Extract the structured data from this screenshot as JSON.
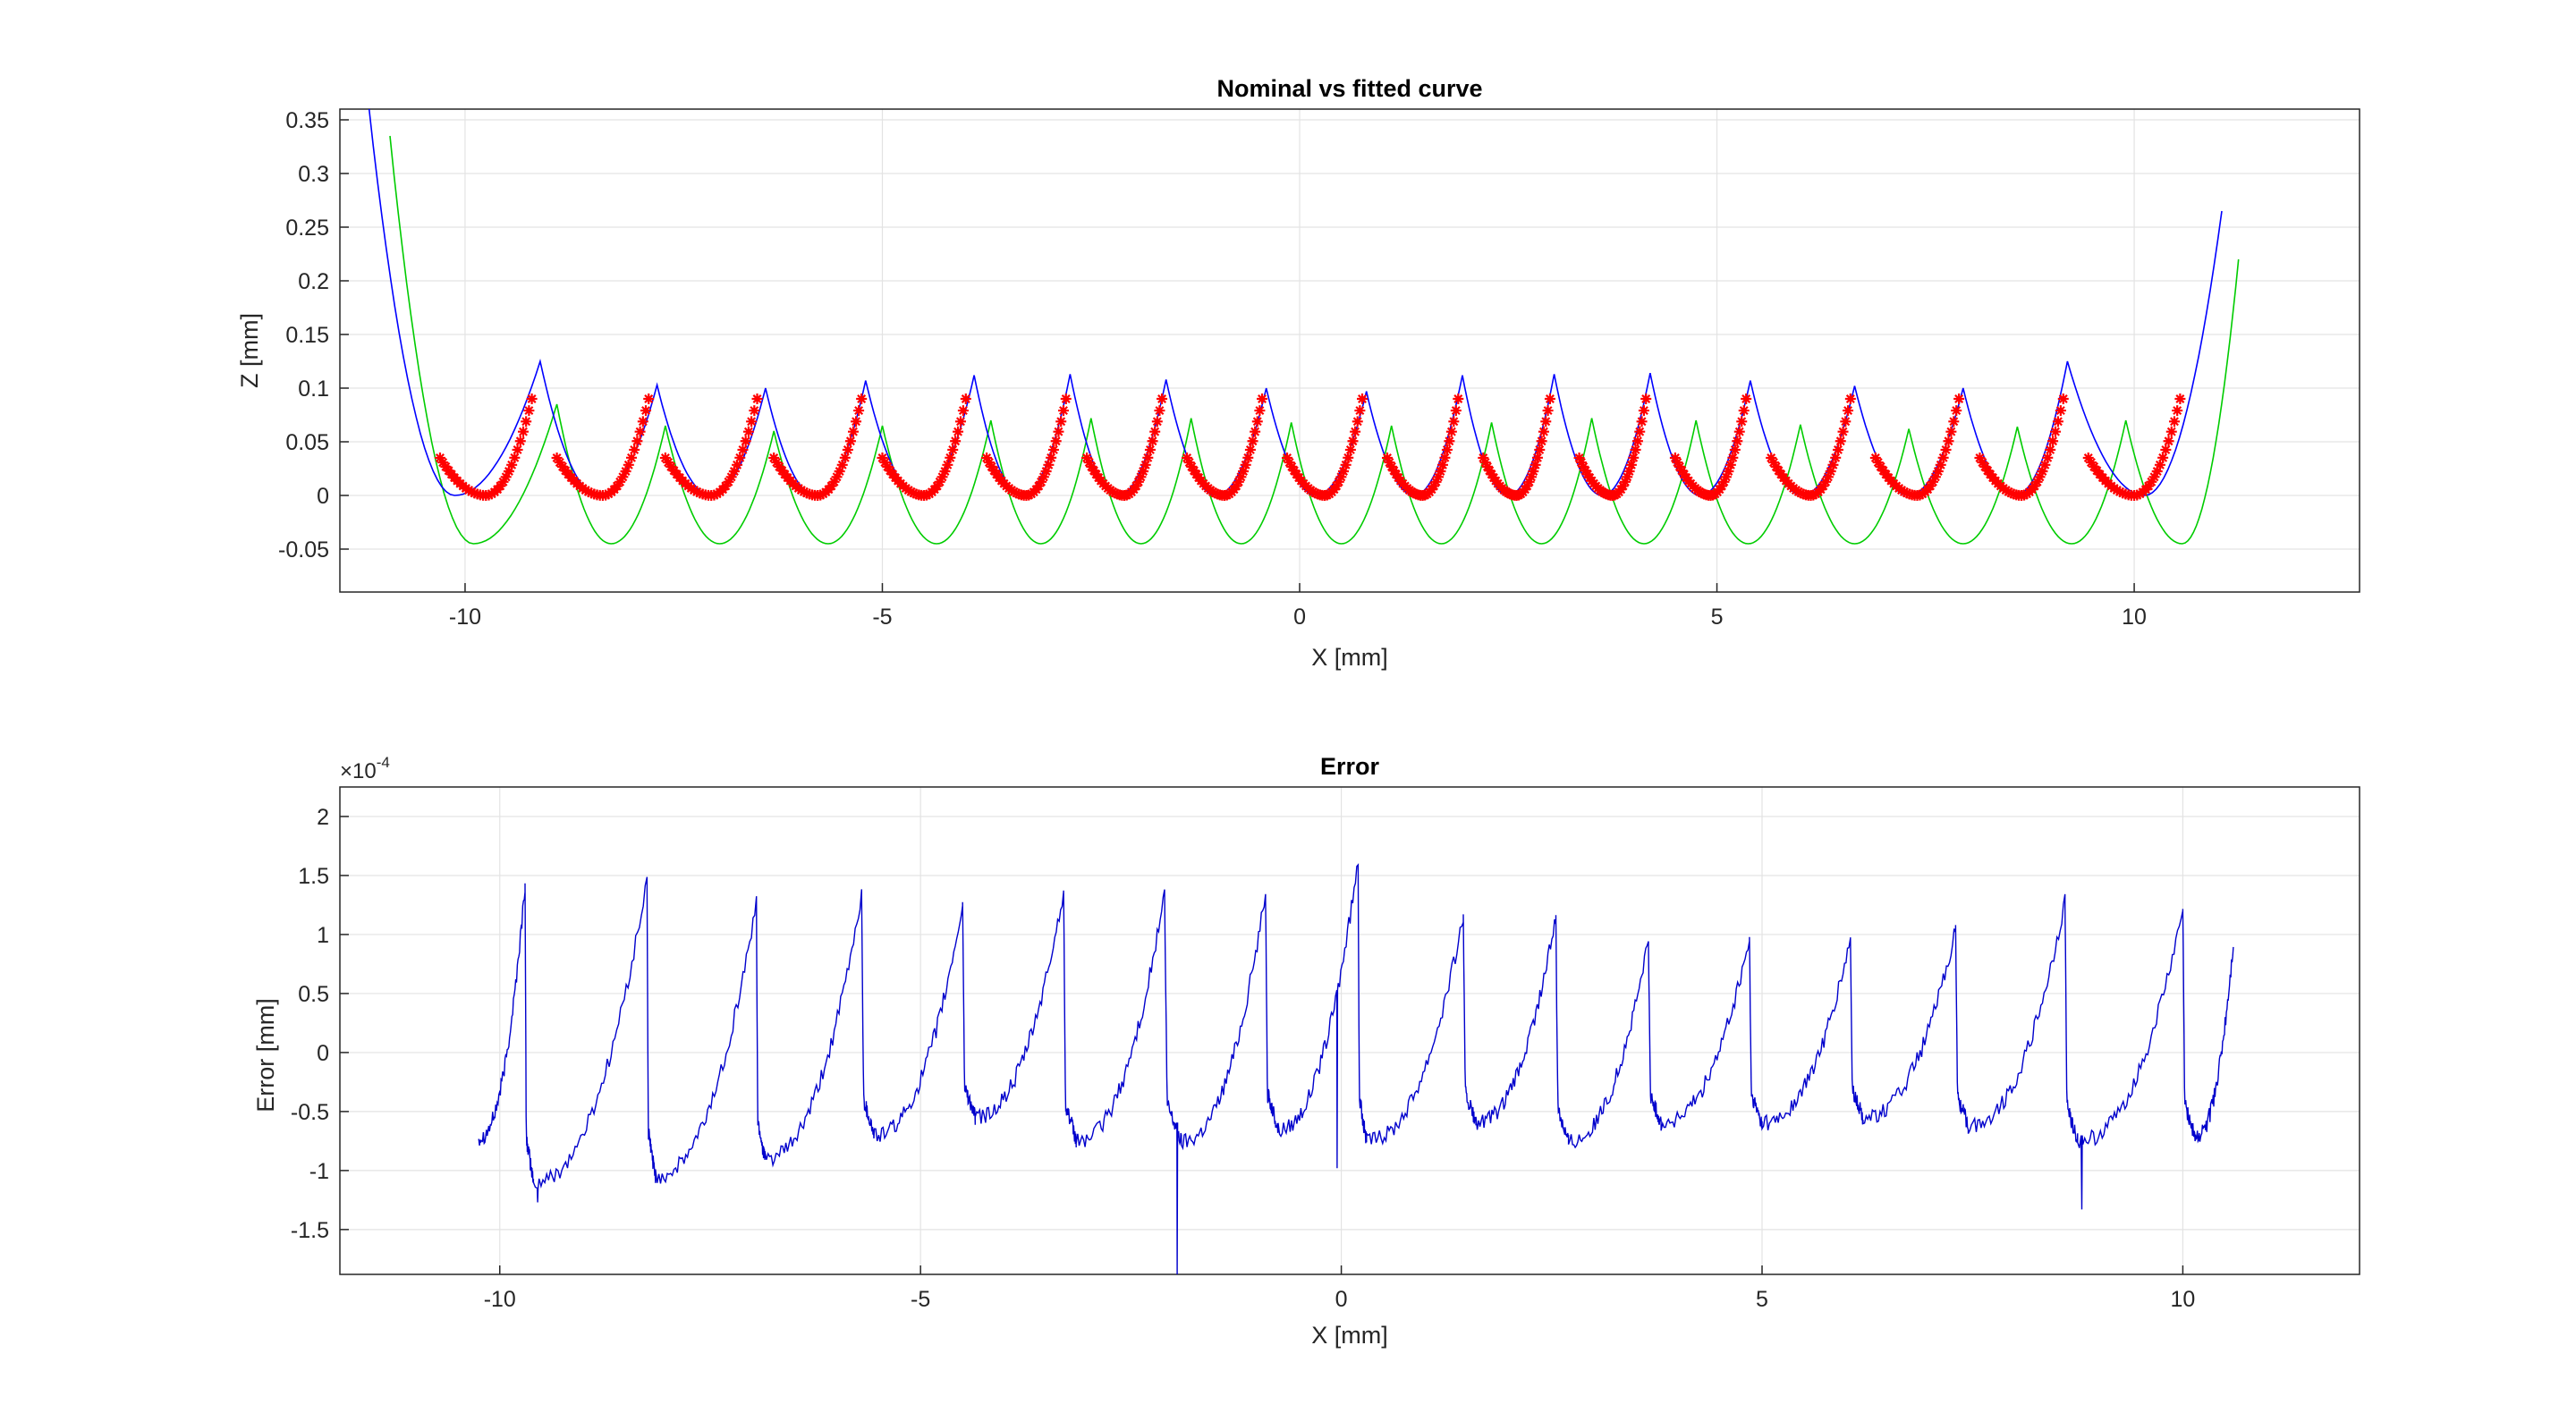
{
  "figure": {
    "background": "#ffffff"
  },
  "chart_data": [
    {
      "type": "line",
      "title": "Nominal vs fitted curve",
      "xlabel": "X [mm]",
      "ylabel": "Z [mm]",
      "xlim": [
        -11.5,
        12.7
      ],
      "ylim": [
        -0.09,
        0.36
      ],
      "xticks": [
        -10,
        -5,
        0,
        5,
        10
      ],
      "xtick_labels": [
        "-10",
        "-5",
        "0",
        "5",
        "10"
      ],
      "yticks": [
        -0.05,
        0,
        0.05,
        0.1,
        0.15,
        0.2,
        0.25,
        0.3,
        0.35
      ],
      "ytick_labels": [
        "-0.05",
        "0",
        "0.05",
        "0.1",
        "0.15",
        "0.2",
        "0.25",
        "0.3",
        "0.35"
      ],
      "grid": true,
      "colors": {
        "fitted": "#0000ff",
        "nominal": "#00cc00",
        "points": "#ff0000"
      },
      "fitted_cusps": [
        {
          "x": -9.1,
          "y": 0.125
        },
        {
          "x": -7.7,
          "y": 0.103
        },
        {
          "x": -6.4,
          "y": 0.1
        },
        {
          "x": -5.2,
          "y": 0.107
        },
        {
          "x": -3.9,
          "y": 0.112
        },
        {
          "x": -2.75,
          "y": 0.113
        },
        {
          "x": -1.6,
          "y": 0.108
        },
        {
          "x": -0.4,
          "y": 0.1
        },
        {
          "x": 0.8,
          "y": 0.097
        },
        {
          "x": 1.95,
          "y": 0.112
        },
        {
          "x": 3.05,
          "y": 0.113
        },
        {
          "x": 4.2,
          "y": 0.114
        },
        {
          "x": 5.4,
          "y": 0.107
        },
        {
          "x": 6.65,
          "y": 0.102
        },
        {
          "x": 7.95,
          "y": 0.1
        },
        {
          "x": 9.2,
          "y": 0.125
        }
      ],
      "fitted_ends": {
        "left": {
          "x": -11.15,
          "y": 0.36
        },
        "right": {
          "x": 11.05,
          "y": 0.265
        }
      },
      "nominal_cusps": [
        {
          "x": -8.9,
          "y": 0.085
        },
        {
          "x": -7.6,
          "y": 0.065
        },
        {
          "x": -6.3,
          "y": 0.06
        },
        {
          "x": -5.0,
          "y": 0.065
        },
        {
          "x": -3.7,
          "y": 0.07
        },
        {
          "x": -2.5,
          "y": 0.072
        },
        {
          "x": -1.3,
          "y": 0.072
        },
        {
          "x": -0.1,
          "y": 0.068
        },
        {
          "x": 1.1,
          "y": 0.065
        },
        {
          "x": 2.3,
          "y": 0.068
        },
        {
          "x": 3.5,
          "y": 0.072
        },
        {
          "x": 4.75,
          "y": 0.07
        },
        {
          "x": 6.0,
          "y": 0.066
        },
        {
          "x": 7.3,
          "y": 0.062
        },
        {
          "x": 8.6,
          "y": 0.064
        },
        {
          "x": 9.9,
          "y": 0.07
        }
      ],
      "nominal_valley_y": -0.045,
      "nominal_ends": {
        "left": {
          "x": -10.9,
          "y": 0.335
        },
        "right": {
          "x": 11.25,
          "y": 0.22
        }
      },
      "data_point_segments": [
        {
          "x0": -10.3,
          "x1": -9.2
        },
        {
          "x0": -8.9,
          "x1": -7.8
        },
        {
          "x0": -7.6,
          "x1": -6.5
        },
        {
          "x0": -6.3,
          "x1": -5.25
        },
        {
          "x0": -5.0,
          "x1": -4.0
        },
        {
          "x0": -3.75,
          "x1": -2.8
        },
        {
          "x0": -2.55,
          "x1": -1.65
        },
        {
          "x0": -1.35,
          "x1": -0.45
        },
        {
          "x0": -0.15,
          "x1": 0.75
        },
        {
          "x0": 1.05,
          "x1": 1.9
        },
        {
          "x0": 2.2,
          "x1": 3.0
        },
        {
          "x0": 3.35,
          "x1": 4.15
        },
        {
          "x0": 4.5,
          "x1": 5.35
        },
        {
          "x0": 5.65,
          "x1": 6.6
        },
        {
          "x0": 6.9,
          "x1": 7.9
        },
        {
          "x0": 8.15,
          "x1": 9.15
        },
        {
          "x0": 9.45,
          "x1": 10.55
        }
      ],
      "data_point_end_y": 0.09,
      "data_point_start_y": 0.035
    },
    {
      "type": "line",
      "title": "Error",
      "xlabel": "X [mm]",
      "ylabel": "Error [mm]",
      "exponent_label": "×10",
      "exponent_power": "-4",
      "xlim": [
        -11.9,
        12.1
      ],
      "ylim": [
        -1.88,
        2.25
      ],
      "xticks": [
        -10,
        -5,
        0,
        5,
        10
      ],
      "xtick_labels": [
        "-10",
        "-5",
        "0",
        "5",
        "10"
      ],
      "yticks": [
        -1.5,
        -1,
        -0.5,
        0,
        0.5,
        1,
        1.5,
        2
      ],
      "ytick_labels": [
        "-1.5",
        "-1",
        "-0.5",
        "0",
        "0.5",
        "1",
        "1.5",
        "2"
      ],
      "grid": true,
      "colors": {
        "series": "#0000cc"
      },
      "peaks": [
        {
          "x": -9.7,
          "y": 1.42
        },
        {
          "x": -8.25,
          "y": 1.45
        },
        {
          "x": -6.95,
          "y": 1.27
        },
        {
          "x": -5.7,
          "y": 1.34
        },
        {
          "x": -4.5,
          "y": 1.25
        },
        {
          "x": -3.3,
          "y": 1.36
        },
        {
          "x": -2.1,
          "y": 1.35
        },
        {
          "x": -0.9,
          "y": 1.35
        },
        {
          "x": 0.2,
          "y": 1.62
        },
        {
          "x": 1.45,
          "y": 1.15
        },
        {
          "x": 2.55,
          "y": 1.15
        },
        {
          "x": 3.65,
          "y": 0.95
        },
        {
          "x": 4.85,
          "y": 0.95
        },
        {
          "x": 6.05,
          "y": 0.95
        },
        {
          "x": 7.3,
          "y": 1.04
        },
        {
          "x": 8.6,
          "y": 1.28
        },
        {
          "x": 10.0,
          "y": 1.2
        }
      ],
      "troughs": [
        {
          "x": -9.6,
          "y": -1.1
        },
        {
          "x": -8.15,
          "y": -1.05
        },
        {
          "x": -6.85,
          "y": -0.9
        },
        {
          "x": -5.55,
          "y": -0.7
        },
        {
          "x": -4.35,
          "y": -0.55
        },
        {
          "x": -3.15,
          "y": -0.75
        },
        {
          "x": -1.9,
          "y": -0.75
        },
        {
          "x": -0.75,
          "y": -0.65
        },
        {
          "x": 0.3,
          "y": -0.75
        },
        {
          "x": 1.6,
          "y": -0.6
        },
        {
          "x": 2.7,
          "y": -0.75
        },
        {
          "x": 3.8,
          "y": -0.6
        },
        {
          "x": 5.0,
          "y": -0.6
        },
        {
          "x": 6.2,
          "y": -0.55
        },
        {
          "x": 7.45,
          "y": -0.62
        },
        {
          "x": 8.75,
          "y": -0.75
        },
        {
          "x": 10.15,
          "y": -0.72
        }
      ],
      "spikes": [
        {
          "x": -9.55,
          "y": -1.27
        },
        {
          "x": -1.95,
          "y": -1.88
        },
        {
          "x": 8.8,
          "y": -1.33
        },
        {
          "x": -0.05,
          "y": -0.98
        }
      ],
      "start": {
        "x": -10.25,
        "y": -0.72
      },
      "end": {
        "x": 10.6,
        "y": 0.92
      }
    }
  ]
}
